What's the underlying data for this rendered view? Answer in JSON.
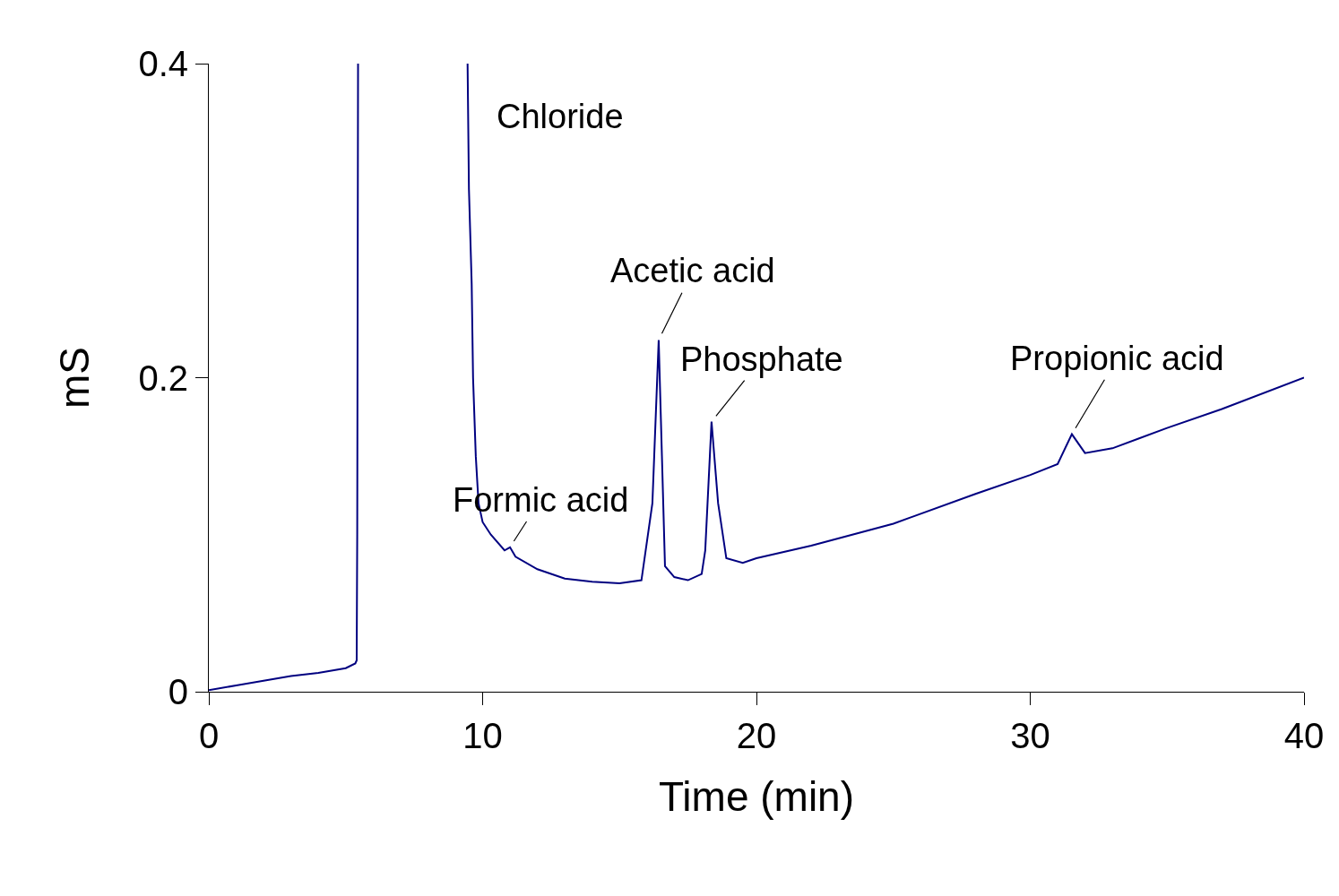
{
  "chart_data": {
    "type": "line",
    "xlabel": "Time (min)",
    "ylabel": "mS",
    "xlim": [
      0,
      40
    ],
    "xticks": [
      0,
      10,
      20,
      30,
      40
    ],
    "ylim": [
      0,
      0.4
    ],
    "yticks": [
      0,
      0.2,
      0.4
    ],
    "marker": "none",
    "line_style": "solid",
    "series": [
      {
        "color": "#000080",
        "x": [
          0,
          1,
          2,
          3,
          4,
          5,
          5.35,
          5.4,
          5.42,
          5.45,
          7,
          9.45,
          9.5,
          9.6,
          9.65,
          9.75,
          9.85,
          10.0,
          10.3,
          10.8,
          11.0,
          11.2,
          12,
          13,
          14,
          15,
          15.8,
          16.2,
          16.43,
          16.66,
          17,
          17.5,
          18.0,
          18.13,
          18.36,
          18.6,
          18.9,
          19.5,
          20,
          22,
          25,
          28,
          30,
          31,
          31.52,
          32,
          33,
          35,
          37,
          40
        ],
        "values": [
          0.001,
          0.004,
          0.007,
          0.01,
          0.012,
          0.015,
          0.018,
          0.02,
          0.1,
          0.4,
          null,
          0.4,
          0.32,
          0.26,
          0.2,
          0.15,
          0.12,
          0.108,
          0.1,
          0.09,
          0.092,
          0.086,
          0.078,
          0.072,
          0.07,
          0.069,
          0.071,
          0.12,
          0.224,
          0.08,
          0.073,
          0.071,
          0.075,
          0.09,
          0.172,
          0.12,
          0.085,
          0.082,
          0.085,
          0.093,
          0.107,
          0.126,
          0.138,
          0.145,
          0.164,
          0.152,
          0.155,
          0.168,
          0.18,
          0.2
        ]
      }
    ],
    "annotations": [
      {
        "text": "Chloride",
        "x": 9.45,
        "y": 0.4
      },
      {
        "text": "Formic acid",
        "x": 11.0,
        "y": 0.092
      },
      {
        "text": "Acetic acid",
        "x": 16.43,
        "y": 0.224
      },
      {
        "text": "Phosphate",
        "x": 18.36,
        "y": 0.172
      },
      {
        "text": "Propionic acid",
        "x": 31.52,
        "y": 0.164
      }
    ]
  }
}
